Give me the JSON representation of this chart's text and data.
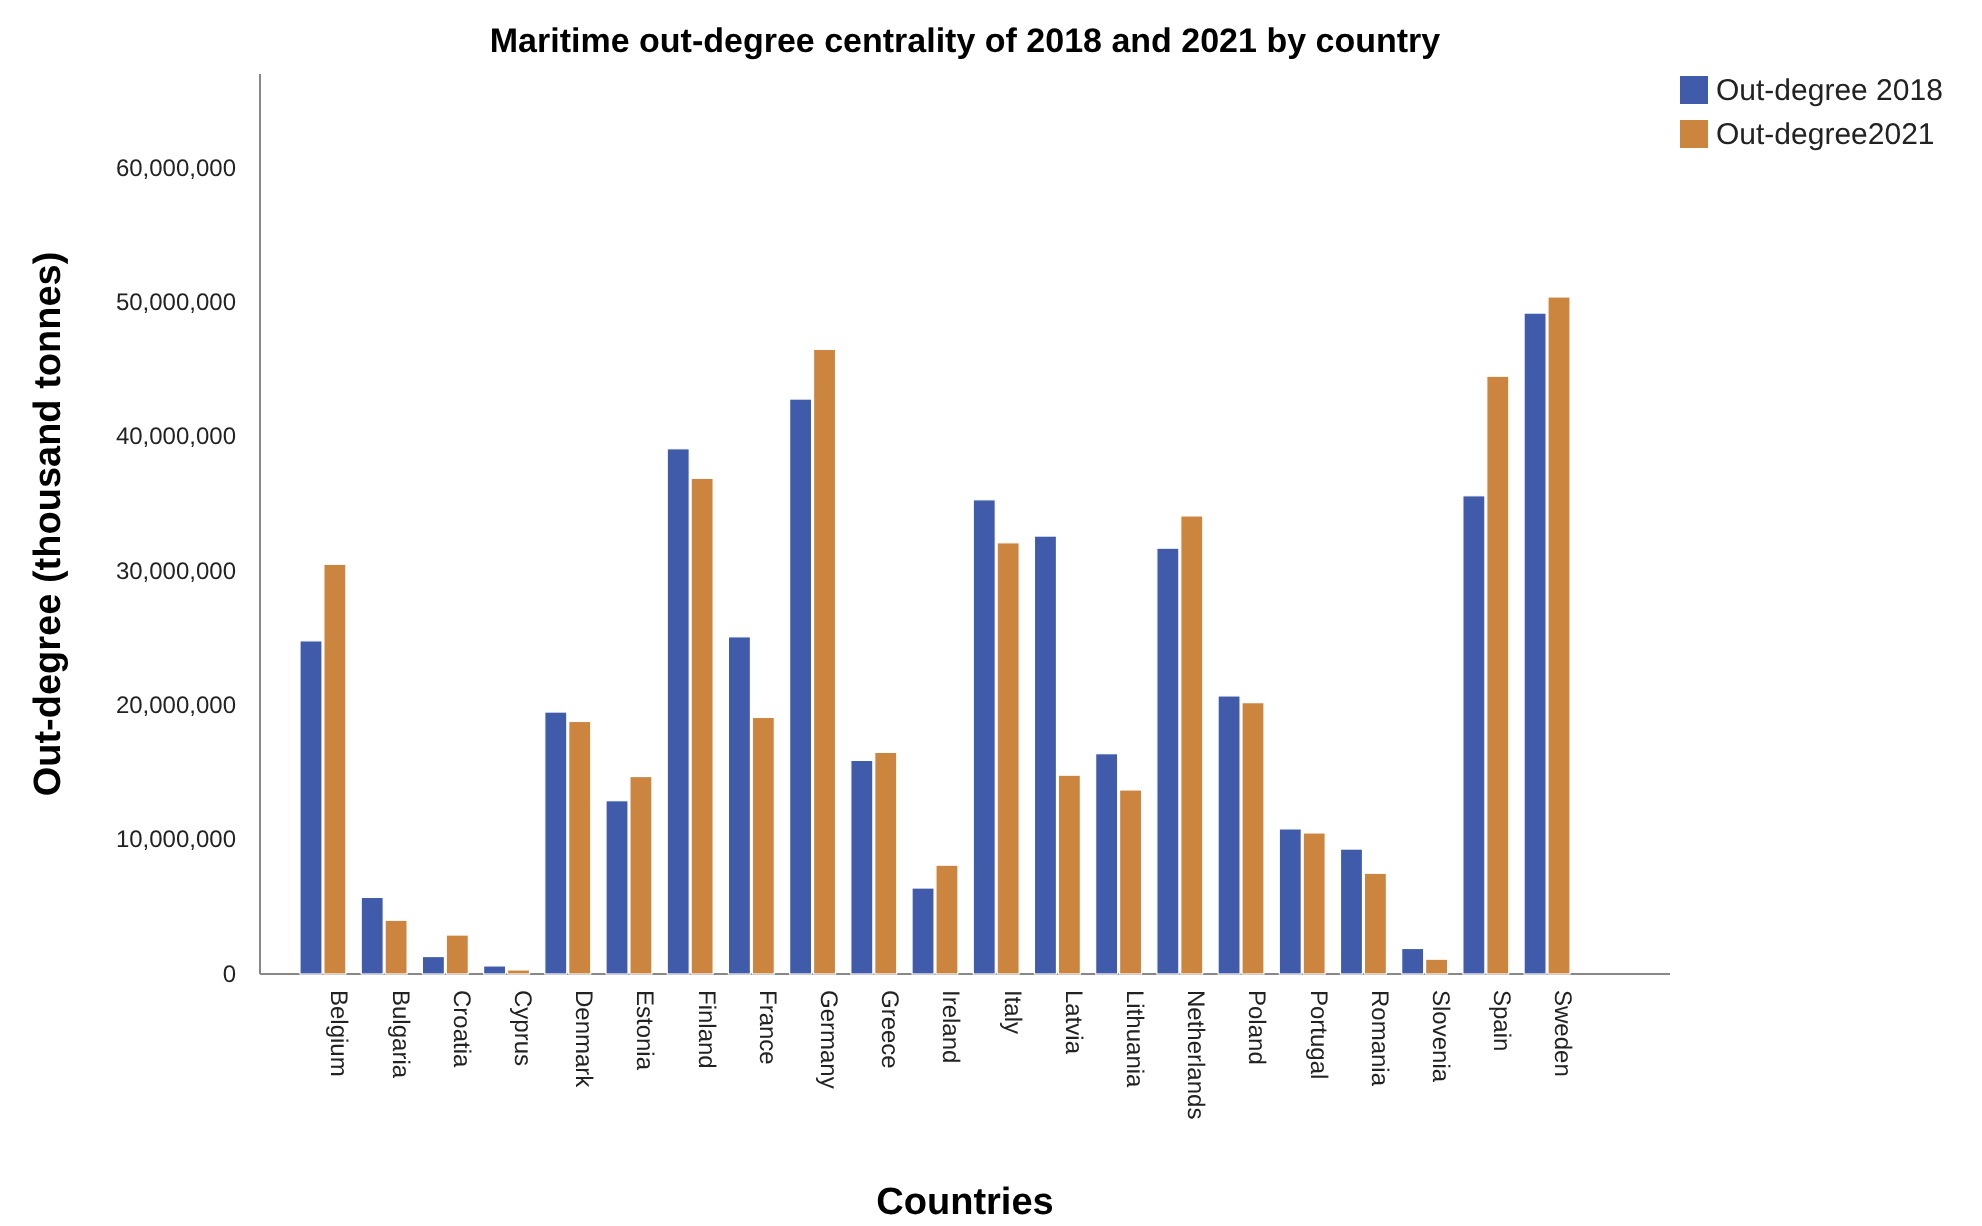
{
  "chart_data": {
    "type": "bar",
    "title": "Maritime out-degree centrality of 2018 and 2021 by country",
    "xlabel": "Countries",
    "ylabel": "Out-degree (thousand tonnes)",
    "categories": [
      "Belgium",
      "Bulgaria",
      "Croatia",
      "Cyprus",
      "Denmark",
      "Estonia",
      "Finland",
      "France",
      "Germany",
      "Greece",
      "Ireland",
      "Italy",
      "Latvia",
      "Lithuania",
      "Netherlands",
      "Poland",
      "Portugal",
      "Romania",
      "Slovenia",
      "Spain",
      "Sweden"
    ],
    "series": [
      {
        "name": "Out-degree 2018",
        "color": "#3f5ba9",
        "values": [
          24800000,
          5700000,
          1300000,
          600000,
          19500000,
          12900000,
          39100000,
          25100000,
          42800000,
          15900000,
          6400000,
          35300000,
          32600000,
          16400000,
          31700000,
          20700000,
          10800000,
          9300000,
          1900000,
          35600000,
          49200000
        ]
      },
      {
        "name": "Out-degree2021",
        "color": "#cc853e",
        "values": [
          30500000,
          4000000,
          2900000,
          300000,
          18800000,
          14700000,
          36900000,
          19100000,
          46500000,
          16500000,
          8100000,
          32100000,
          14800000,
          13700000,
          34100000,
          20200000,
          10500000,
          7500000,
          1100000,
          44500000,
          50400000
        ]
      }
    ],
    "ylim": [
      0,
      67000000
    ],
    "yticks": [
      0,
      {
        "value": 10000000,
        "label": "10,000,000"
      },
      {
        "value": 20000000,
        "label": "20,000,000"
      },
      {
        "value": 30000000,
        "label": "30,000,000"
      },
      {
        "value": 40000000,
        "label": "40,000,000"
      },
      {
        "value": 50000000,
        "label": "50,000,000"
      },
      {
        "value": 60000000,
        "label": "60,000,000"
      }
    ],
    "legend": "top right",
    "grid": false
  }
}
